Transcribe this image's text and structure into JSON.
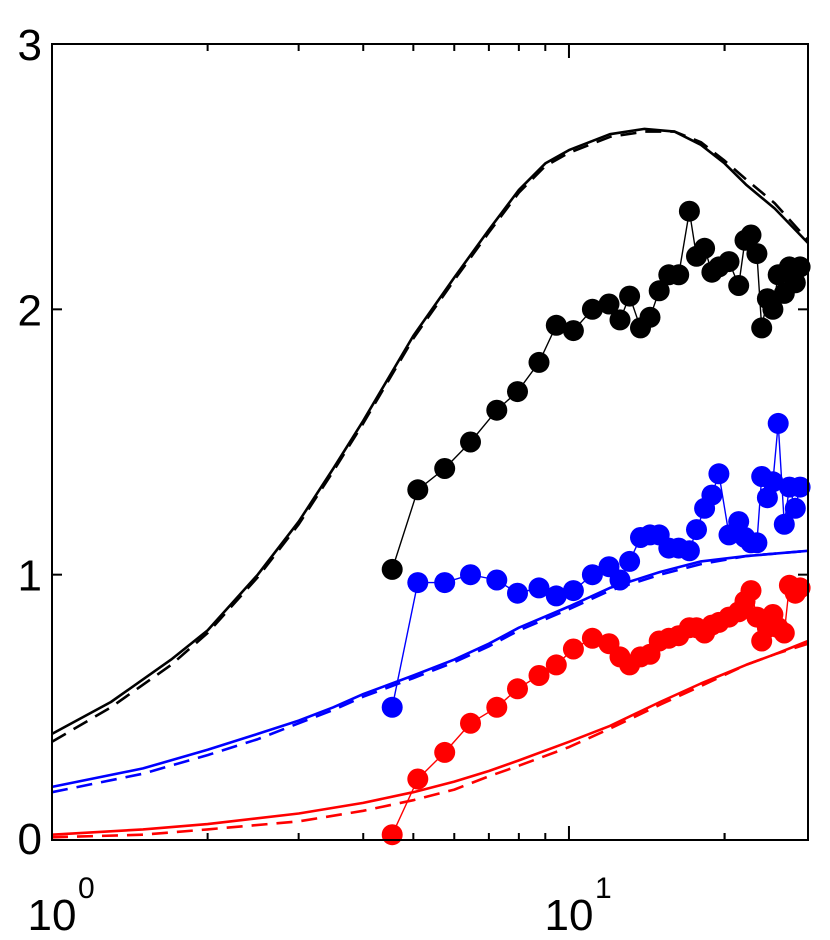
{
  "chart_data": {
    "type": "line",
    "title": "",
    "xlabel": "",
    "ylabel": "",
    "x_scale": "log",
    "xlim": [
      1,
      29
    ],
    "ylim": [
      0,
      3
    ],
    "grid": false,
    "legend": "none",
    "x_ticks": [
      {
        "value": 1,
        "base": "10",
        "exp": "0"
      },
      {
        "value": 10,
        "base": "10",
        "exp": "1"
      }
    ],
    "y_ticks": [
      {
        "value": 0,
        "label": "0"
      },
      {
        "value": 1,
        "label": "1"
      },
      {
        "value": 2,
        "label": "2"
      },
      {
        "value": 3,
        "label": "3"
      }
    ],
    "series": [
      {
        "name": "black-solid",
        "kind": "line",
        "color": "#000000",
        "dash": false,
        "x": [
          1,
          1.3,
          1.7,
          2,
          2.5,
          3,
          3.5,
          4,
          5,
          6,
          7,
          8,
          9,
          10,
          12,
          14,
          16,
          18,
          20,
          22,
          25,
          29
        ],
        "y": [
          0.4,
          0.52,
          0.68,
          0.79,
          1.0,
          1.2,
          1.4,
          1.58,
          1.9,
          2.12,
          2.3,
          2.45,
          2.55,
          2.6,
          2.66,
          2.68,
          2.67,
          2.62,
          2.55,
          2.47,
          2.38,
          2.25
        ]
      },
      {
        "name": "black-dashed",
        "kind": "line",
        "color": "#000000",
        "dash": true,
        "x": [
          1,
          1.3,
          1.7,
          2,
          2.5,
          3,
          3.5,
          4,
          5,
          6,
          7,
          8,
          9,
          10,
          12,
          14,
          16,
          18,
          20,
          22,
          25,
          29
        ],
        "y": [
          0.37,
          0.5,
          0.66,
          0.78,
          0.99,
          1.19,
          1.39,
          1.57,
          1.89,
          2.11,
          2.29,
          2.44,
          2.54,
          2.59,
          2.65,
          2.67,
          2.67,
          2.63,
          2.56,
          2.49,
          2.4,
          2.26
        ]
      },
      {
        "name": "blue-solid",
        "kind": "line",
        "color": "#0000ff",
        "dash": false,
        "x": [
          1,
          1.5,
          2,
          2.5,
          3,
          3.5,
          4,
          5,
          6,
          7,
          8,
          10,
          12,
          15,
          18,
          22,
          29
        ],
        "y": [
          0.2,
          0.27,
          0.34,
          0.4,
          0.45,
          0.5,
          0.55,
          0.62,
          0.68,
          0.74,
          0.8,
          0.88,
          0.95,
          1.01,
          1.05,
          1.07,
          1.09
        ]
      },
      {
        "name": "blue-dashed",
        "kind": "line",
        "color": "#0000ff",
        "dash": true,
        "x": [
          1,
          1.5,
          2,
          2.5,
          3,
          3.5,
          4,
          5,
          6,
          7,
          8,
          10,
          12,
          15,
          18,
          22,
          29
        ],
        "y": [
          0.18,
          0.25,
          0.32,
          0.38,
          0.44,
          0.49,
          0.54,
          0.61,
          0.67,
          0.73,
          0.79,
          0.87,
          0.94,
          1.0,
          1.04,
          1.07,
          1.09
        ]
      },
      {
        "name": "red-solid",
        "kind": "line",
        "color": "#ff0000",
        "dash": false,
        "x": [
          1,
          1.5,
          2,
          3,
          4,
          5,
          6,
          7,
          8,
          10,
          12,
          15,
          18,
          22,
          25,
          29
        ],
        "y": [
          0.02,
          0.04,
          0.06,
          0.1,
          0.14,
          0.18,
          0.22,
          0.26,
          0.3,
          0.37,
          0.43,
          0.52,
          0.59,
          0.66,
          0.7,
          0.75
        ]
      },
      {
        "name": "red-dashed",
        "kind": "line",
        "color": "#ff0000",
        "dash": true,
        "x": [
          1,
          1.5,
          2,
          3,
          4,
          5,
          6,
          7,
          8,
          10,
          12,
          15,
          18,
          22,
          25,
          29
        ],
        "y": [
          0.01,
          0.02,
          0.04,
          0.07,
          0.11,
          0.15,
          0.19,
          0.24,
          0.28,
          0.35,
          0.42,
          0.51,
          0.58,
          0.66,
          0.7,
          0.74
        ]
      },
      {
        "name": "black-points",
        "kind": "markers",
        "color": "#000000",
        "x": [
          4.55,
          5.1,
          5.75,
          6.45,
          7.25,
          7.95,
          8.75,
          9.45,
          10.2,
          11.1,
          11.95,
          12.55,
          13.1,
          13.75,
          14.35,
          14.95,
          15.6,
          16.3,
          17.1,
          17.65,
          18.3,
          18.9,
          19.5,
          20.4,
          21.3,
          21.9,
          22.5,
          23.1,
          23.6,
          24.2,
          24.8,
          25.4,
          26.1,
          26.7,
          27.4,
          28
        ],
        "y": [
          1.02,
          1.32,
          1.4,
          1.5,
          1.62,
          1.69,
          1.8,
          1.94,
          1.92,
          2.0,
          2.02,
          1.96,
          2.05,
          1.93,
          1.97,
          2.07,
          2.13,
          2.13,
          2.37,
          2.2,
          2.23,
          2.14,
          2.16,
          2.18,
          2.09,
          2.26,
          2.28,
          2.21,
          1.93,
          2.04,
          2.0,
          2.13,
          2.06,
          2.16,
          2.1,
          2.16
        ]
      },
      {
        "name": "blue-points",
        "kind": "markers",
        "color": "#0000ff",
        "x": [
          4.55,
          5.1,
          5.75,
          6.45,
          7.25,
          7.95,
          8.75,
          9.45,
          10.2,
          11.1,
          11.95,
          12.55,
          13.1,
          13.75,
          14.35,
          14.95,
          15.6,
          16.3,
          17.1,
          17.65,
          18.3,
          18.9,
          19.5,
          20.4,
          21.3,
          21.9,
          22.5,
          23.1,
          23.6,
          24.2,
          24.8,
          25.4,
          26.1,
          26.7,
          27.4,
          28
        ],
        "y": [
          0.5,
          0.97,
          0.97,
          1.0,
          0.98,
          0.93,
          0.95,
          0.92,
          0.94,
          1.0,
          1.03,
          0.98,
          1.05,
          1.14,
          1.15,
          1.15,
          1.1,
          1.1,
          1.09,
          1.17,
          1.25,
          1.3,
          1.38,
          1.15,
          1.2,
          1.14,
          1.12,
          1.12,
          1.37,
          1.29,
          1.35,
          1.57,
          1.19,
          1.33,
          1.25,
          1.33
        ]
      },
      {
        "name": "red-points",
        "kind": "markers",
        "color": "#ff0000",
        "x": [
          4.55,
          5.1,
          5.75,
          6.45,
          7.25,
          7.95,
          8.75,
          9.45,
          10.2,
          11.1,
          11.95,
          12.55,
          13.1,
          13.75,
          14.35,
          14.95,
          15.6,
          16.3,
          17.1,
          17.65,
          18.3,
          18.9,
          19.5,
          20.4,
          21.3,
          21.9,
          22.5,
          23.1,
          23.6,
          24.2,
          24.8,
          25.4,
          26.1,
          26.7,
          27.4,
          28
        ],
        "y": [
          0.02,
          0.23,
          0.33,
          0.44,
          0.5,
          0.57,
          0.62,
          0.66,
          0.72,
          0.76,
          0.74,
          0.69,
          0.66,
          0.69,
          0.7,
          0.75,
          0.76,
          0.77,
          0.8,
          0.8,
          0.78,
          0.81,
          0.82,
          0.84,
          0.86,
          0.9,
          0.94,
          0.84,
          0.75,
          0.8,
          0.85,
          0.8,
          0.78,
          0.96,
          0.93,
          0.95
        ]
      }
    ]
  }
}
